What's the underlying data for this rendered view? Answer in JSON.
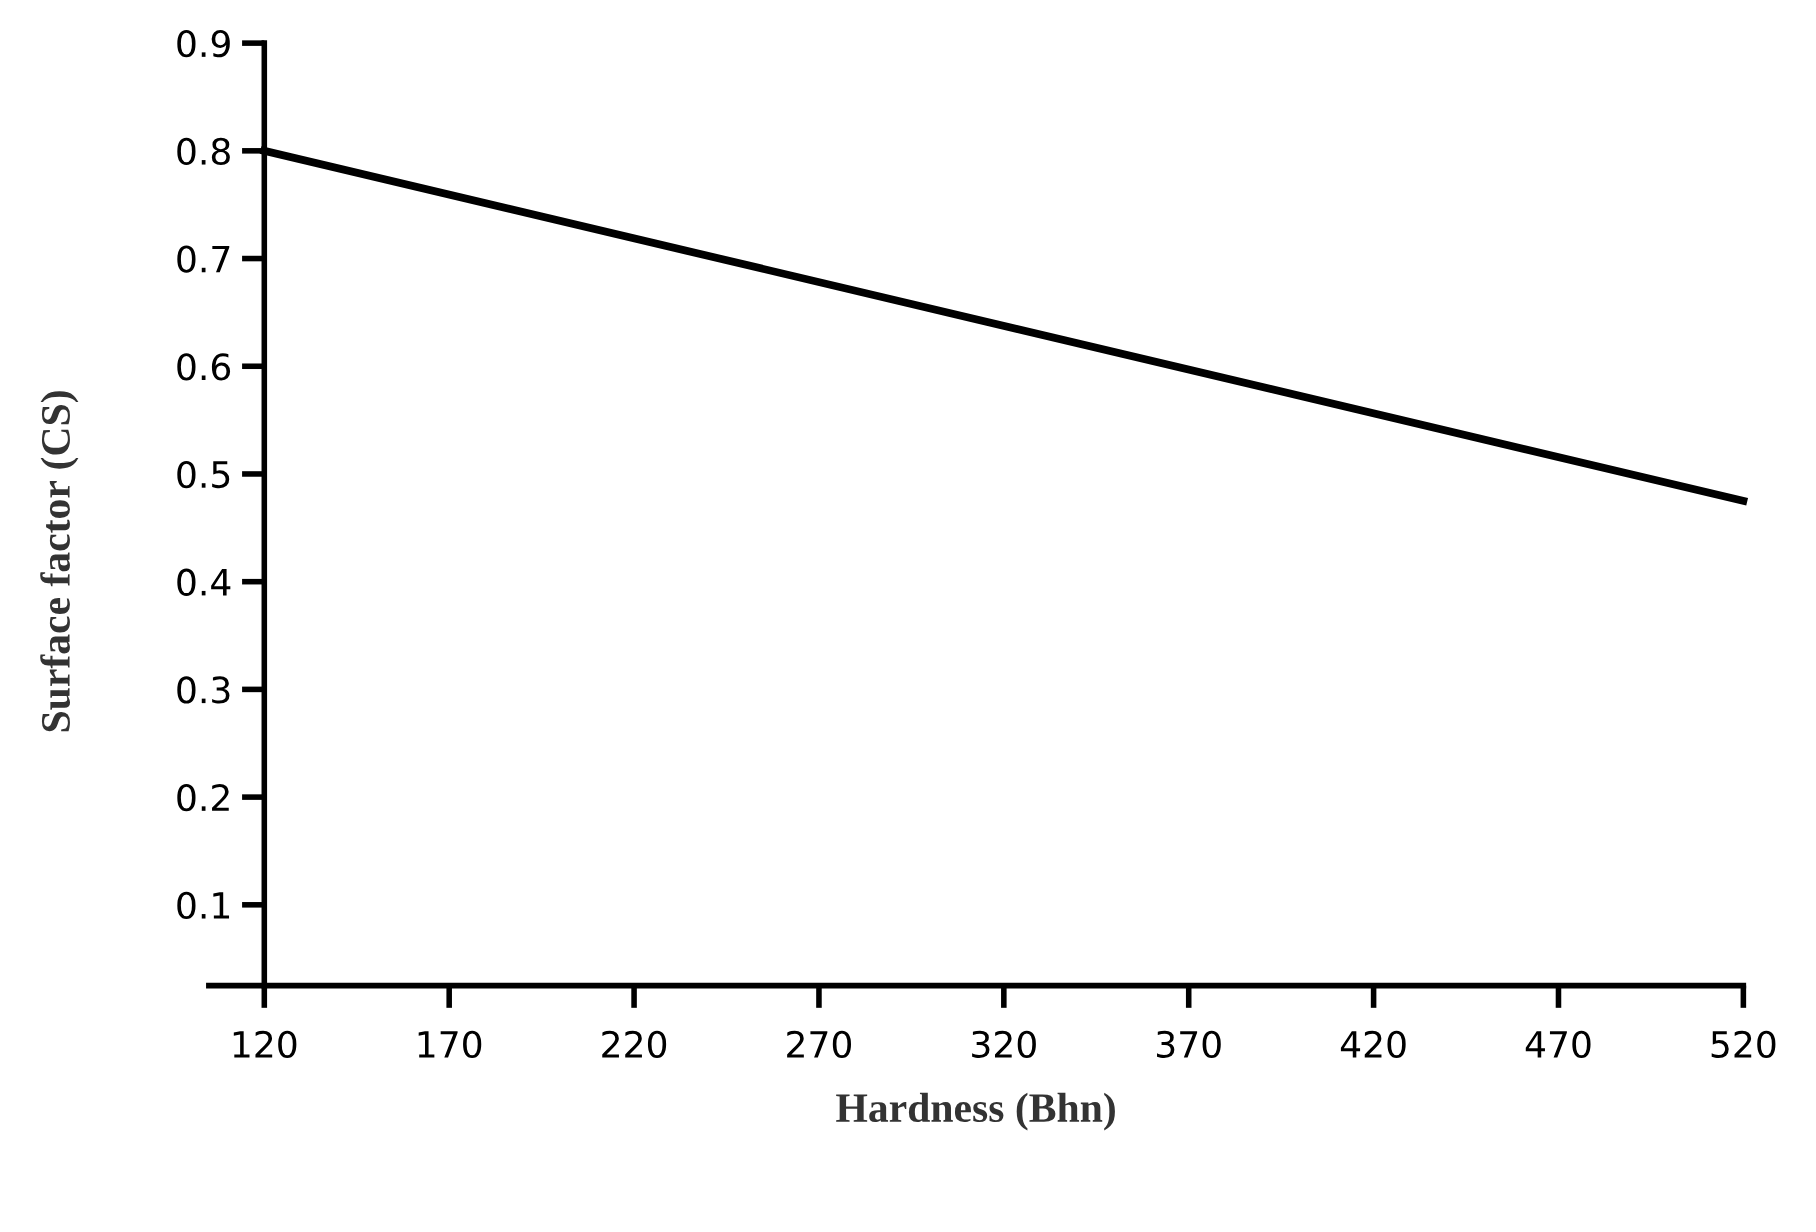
{
  "chart_data": {
    "type": "line",
    "xlabel": "Hardness (Bhn)",
    "ylabel": "Surface factor (CS)",
    "x": [
      120,
      520
    ],
    "series": [
      {
        "color": "#000000",
        "values": [
          0.8,
          0.475
        ]
      }
    ],
    "xlim": [
      105,
      520
    ],
    "xticks": [
      120,
      170,
      220,
      270,
      320,
      370,
      420,
      470,
      520
    ],
    "ylim": [
      0.025,
      0.9
    ],
    "yticks": [
      0.1,
      0.2,
      0.3,
      0.4,
      0.5,
      0.6,
      0.7,
      0.8,
      0.9
    ],
    "grid": false,
    "legend": false,
    "marker": "none",
    "line_style": "solid"
  }
}
